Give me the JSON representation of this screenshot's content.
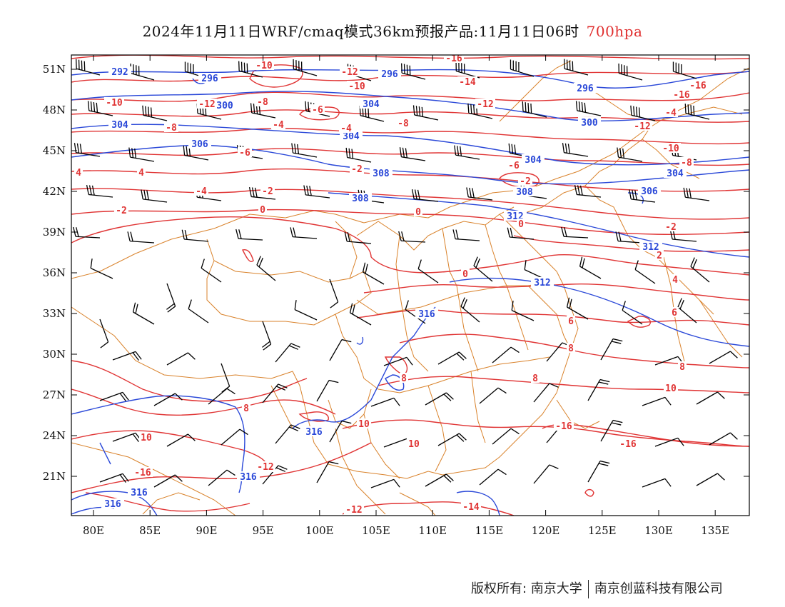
{
  "title": {
    "main": "2024年11月11日WRF/cmaq模式36km预报产品:11月11日06时",
    "level": "700hpa"
  },
  "colors": {
    "temperature": "#e03434",
    "height": "#2a48d8",
    "border": "#d9822b",
    "wind": "#000000",
    "frame": "#000000"
  },
  "axes": {
    "x_ticks": [
      "80E",
      "85E",
      "90E",
      "95E",
      "100E",
      "105E",
      "110E",
      "115E",
      "120E",
      "125E",
      "130E",
      "135E"
    ],
    "y_ticks": [
      "51N",
      "48N",
      "45N",
      "42N",
      "39N",
      "36N",
      "33N",
      "30N",
      "27N",
      "24N",
      "21N"
    ]
  },
  "legend_contours": {
    "height_labels": [
      "292",
      "296",
      "296",
      "296",
      "300",
      "300",
      "304",
      "304",
      "304",
      "304",
      "304",
      "306",
      "306",
      "308",
      "308",
      "308",
      "312",
      "312",
      "312",
      "316",
      "316",
      "316",
      "316",
      "316"
    ],
    "temperature_labels": [
      "-16",
      "-16",
      "-16",
      "-14",
      "-12",
      "-12",
      "-12",
      "-12",
      "-10",
      "-10",
      "-10",
      "-10",
      "-8",
      "-8",
      "-8",
      "-8",
      "-6",
      "-6",
      "-6",
      "-4",
      "-4",
      "-4",
      "-4",
      "-2",
      "-2",
      "-2",
      "-2",
      "-2",
      "0",
      "0",
      "0",
      "0",
      "2",
      "4",
      "4",
      "4",
      "6",
      "6",
      "8",
      "8",
      "8",
      "8",
      "8",
      "10",
      "10",
      "10",
      "10",
      "10"
    ]
  },
  "footer": {
    "owner1": "版权所有: 南京大学",
    "owner2": "南京创蓝科技有限公司"
  }
}
